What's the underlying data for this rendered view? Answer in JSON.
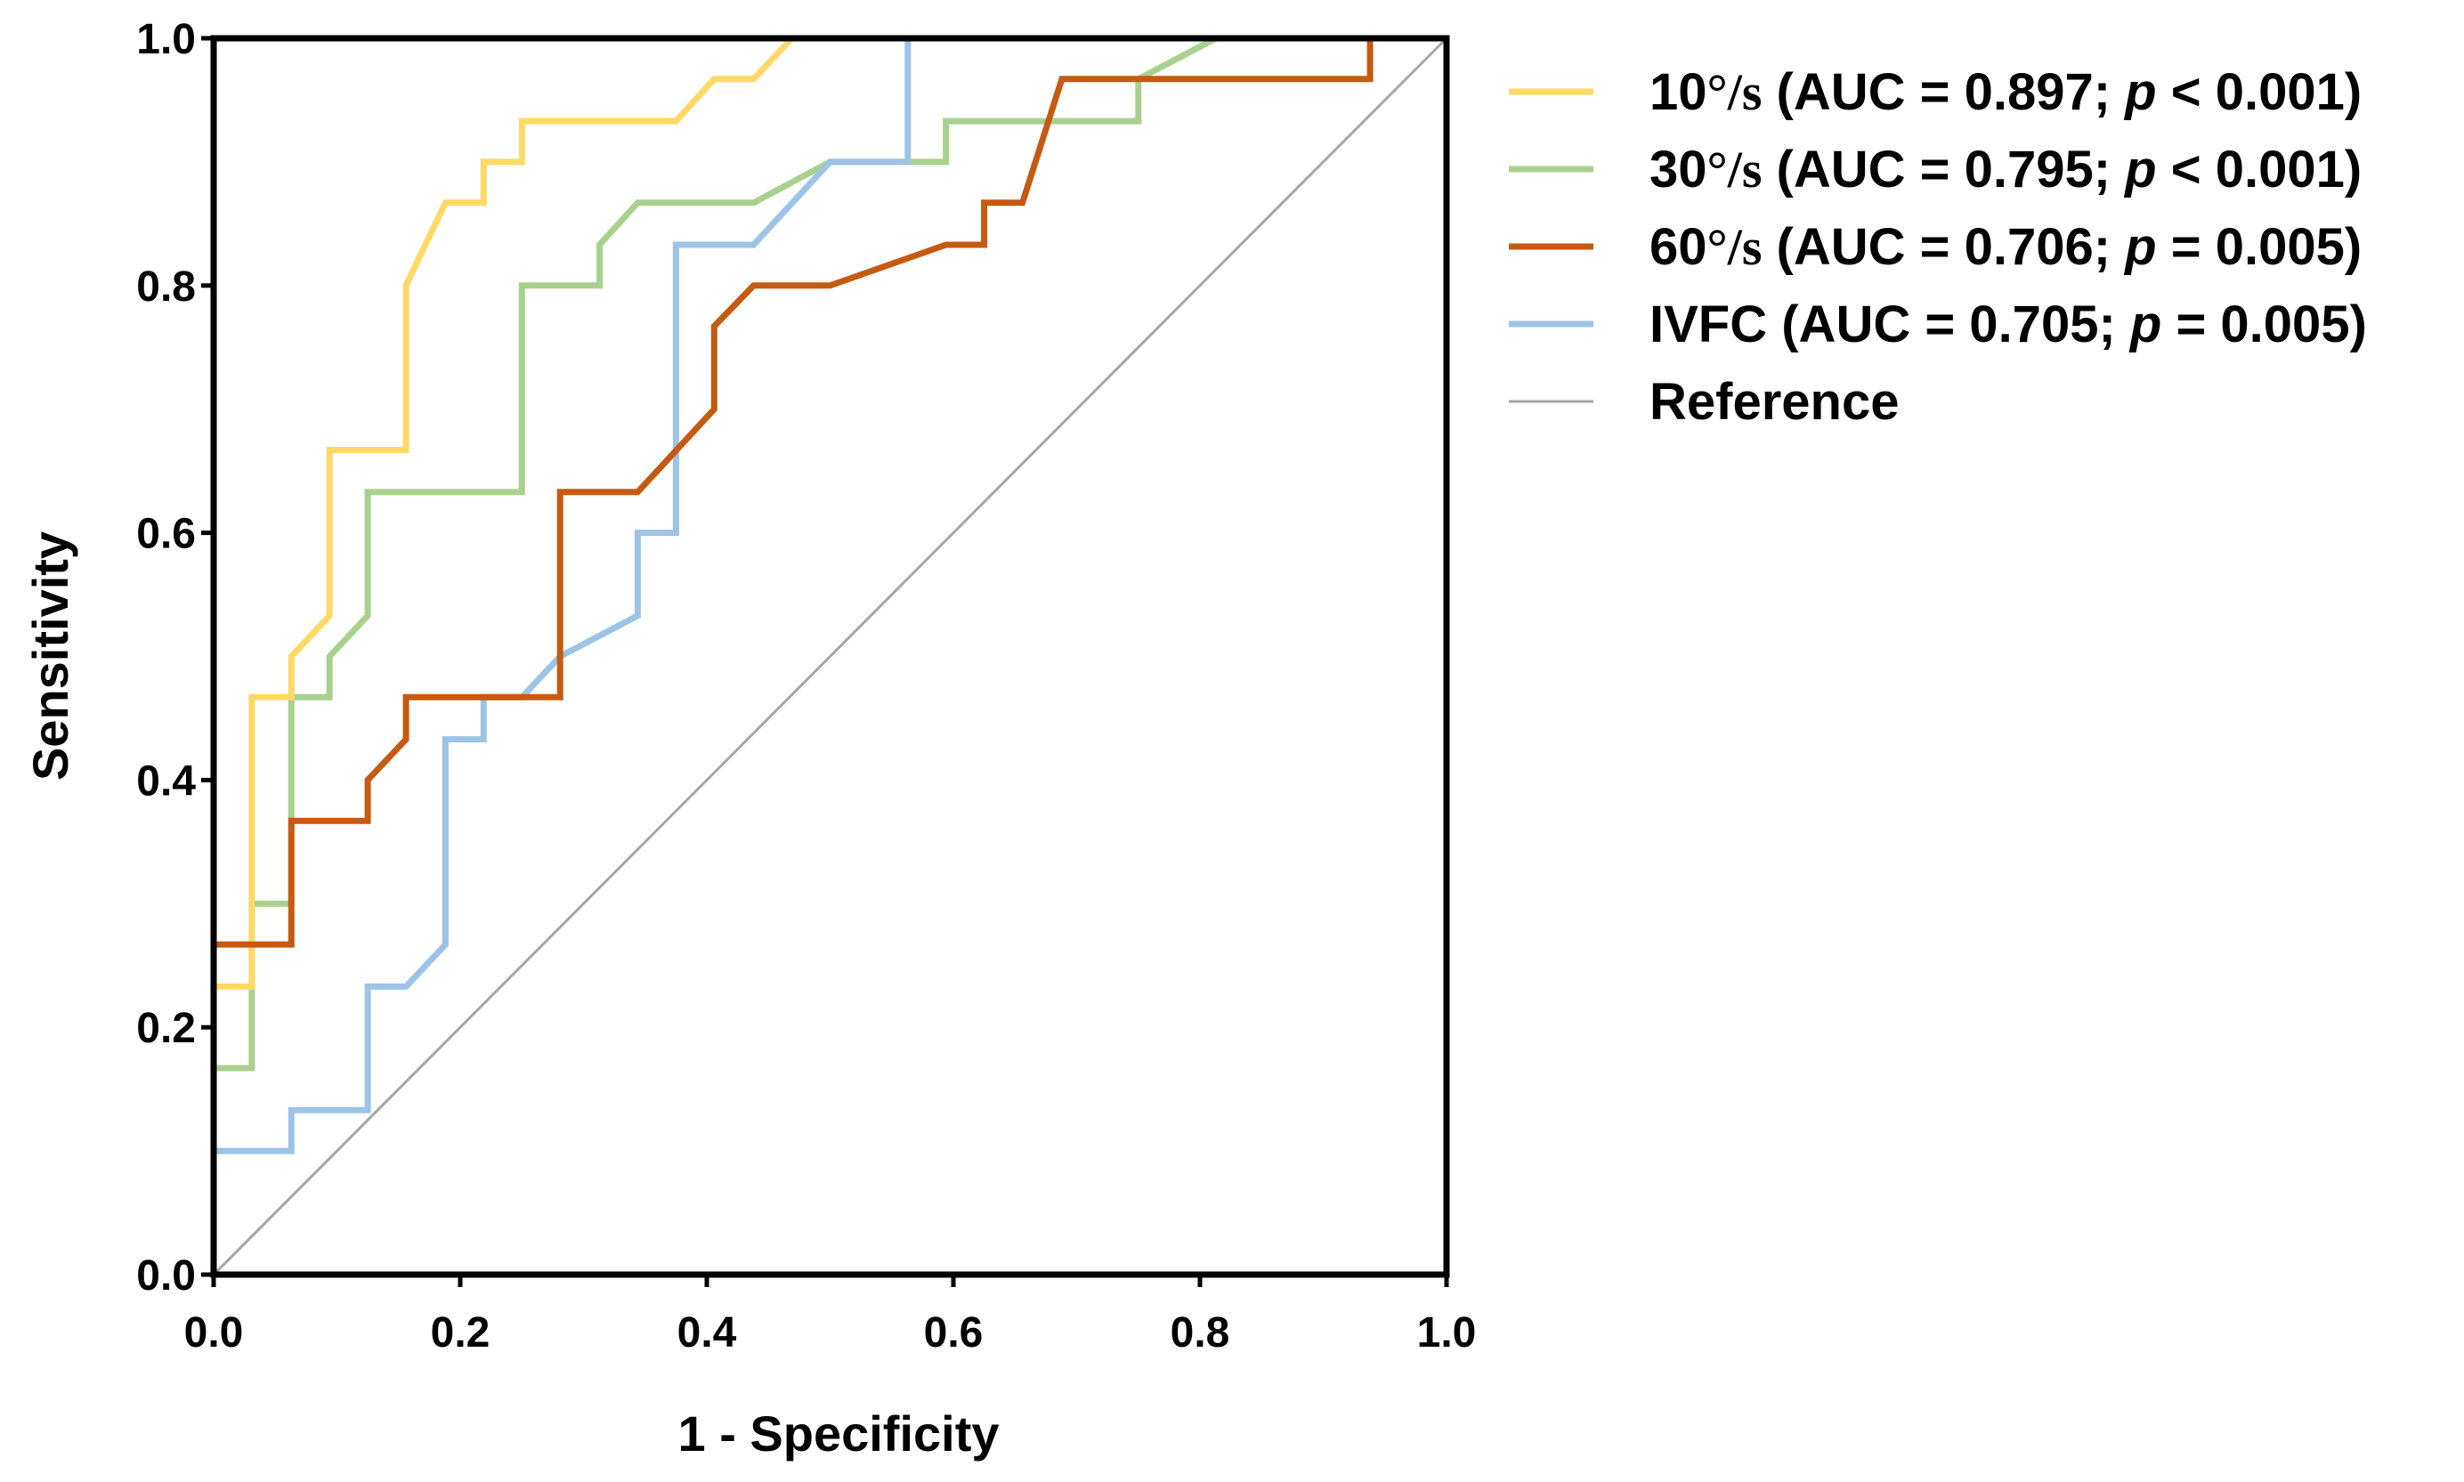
{
  "chart_data": {
    "type": "line",
    "title": "",
    "xlabel": "1 - Specificity",
    "ylabel": "Sensitivity",
    "xlim": [
      0,
      1
    ],
    "ylim": [
      0,
      1
    ],
    "grid": false,
    "legend_position": "right",
    "x_ticks": [
      "0.0",
      "0.2",
      "0.4",
      "0.6",
      "0.8",
      "1.0"
    ],
    "y_ticks": [
      "0.0",
      "0.2",
      "0.4",
      "0.6",
      "0.8",
      "1.0"
    ],
    "series": [
      {
        "name": "10°/s (AUC = 0.897; p < 0.001)",
        "label_prefix": "10",
        "label_unit": "°/s",
        "label_stat": " (AUC = 0.897; ",
        "label_p": "p",
        "label_p_value": " < 0.001)",
        "color": "#FFD966",
        "x": [
          0.0,
          0.0,
          0.031,
          0.031,
          0.063,
          0.063,
          0.094,
          0.094,
          0.156,
          0.156,
          0.188,
          0.219,
          0.219,
          0.25,
          0.25,
          0.375,
          0.406,
          0.438,
          0.469,
          0.469,
          1.0
        ],
        "y": [
          0.0,
          0.233,
          0.233,
          0.467,
          0.467,
          0.5,
          0.533,
          0.667,
          0.667,
          0.8,
          0.867,
          0.867,
          0.9,
          0.9,
          0.933,
          0.933,
          0.967,
          0.967,
          1.0,
          1.0,
          1.0
        ]
      },
      {
        "name": "30°/s (AUC = 0.795; p < 0.001)",
        "label_prefix": "30",
        "label_unit": "°/s",
        "label_stat": " (AUC = 0.795; ",
        "label_p": "p",
        "label_p_value": " < 0.001)",
        "color": "#A9D18E",
        "x": [
          0.0,
          0.0,
          0.031,
          0.031,
          0.063,
          0.063,
          0.094,
          0.094,
          0.125,
          0.125,
          0.25,
          0.25,
          0.313,
          0.313,
          0.344,
          0.438,
          0.5,
          0.594,
          0.594,
          0.75,
          0.75,
          0.813,
          0.813,
          1.0
        ],
        "y": [
          0.0,
          0.167,
          0.167,
          0.3,
          0.3,
          0.467,
          0.467,
          0.5,
          0.533,
          0.633,
          0.633,
          0.8,
          0.8,
          0.833,
          0.867,
          0.867,
          0.9,
          0.9,
          0.933,
          0.933,
          0.967,
          1.0,
          1.0,
          1.0
        ]
      },
      {
        "name": "60°/s (AUC = 0.706; p = 0.005)",
        "label_prefix": "60",
        "label_unit": "°/s",
        "label_stat": " (AUC = 0.706; ",
        "label_p": "p",
        "label_p_value": " = 0.005)",
        "color": "#C55A11",
        "x": [
          0.0,
          0.0,
          0.0,
          0.063,
          0.063,
          0.125,
          0.125,
          0.156,
          0.156,
          0.281,
          0.281,
          0.344,
          0.406,
          0.406,
          0.438,
          0.5,
          0.594,
          0.625,
          0.625,
          0.656,
          0.688,
          0.938,
          0.938,
          1.0
        ],
        "y": [
          0.0,
          0.1,
          0.267,
          0.267,
          0.367,
          0.367,
          0.4,
          0.433,
          0.467,
          0.467,
          0.633,
          0.633,
          0.7,
          0.767,
          0.8,
          0.8,
          0.833,
          0.833,
          0.867,
          0.867,
          0.967,
          0.967,
          1.0,
          1.0
        ]
      },
      {
        "name": "IVFC (AUC = 0.705; p = 0.005)",
        "label_prefix": "IVFC",
        "label_unit": "",
        "label_stat": " (AUC = 0.705; ",
        "label_p": "p",
        "label_p_value": " = 0.005)",
        "color": "#9DC3E6",
        "x": [
          0.0,
          0.0,
          0.063,
          0.063,
          0.125,
          0.125,
          0.156,
          0.188,
          0.188,
          0.219,
          0.219,
          0.25,
          0.281,
          0.344,
          0.344,
          0.375,
          0.375,
          0.438,
          0.5,
          0.563,
          0.563,
          0.875,
          0.875,
          1.0
        ],
        "y": [
          0.0,
          0.1,
          0.1,
          0.133,
          0.133,
          0.233,
          0.233,
          0.267,
          0.433,
          0.433,
          0.467,
          0.467,
          0.5,
          0.533,
          0.6,
          0.6,
          0.833,
          0.833,
          0.9,
          0.9,
          1.0,
          1.0,
          1.0,
          1.0
        ]
      },
      {
        "name": "Reference",
        "label_prefix": "Reference",
        "color": "#A6A6A6",
        "x": [
          0.0,
          1.0
        ],
        "y": [
          0.0,
          1.0
        ]
      }
    ]
  }
}
